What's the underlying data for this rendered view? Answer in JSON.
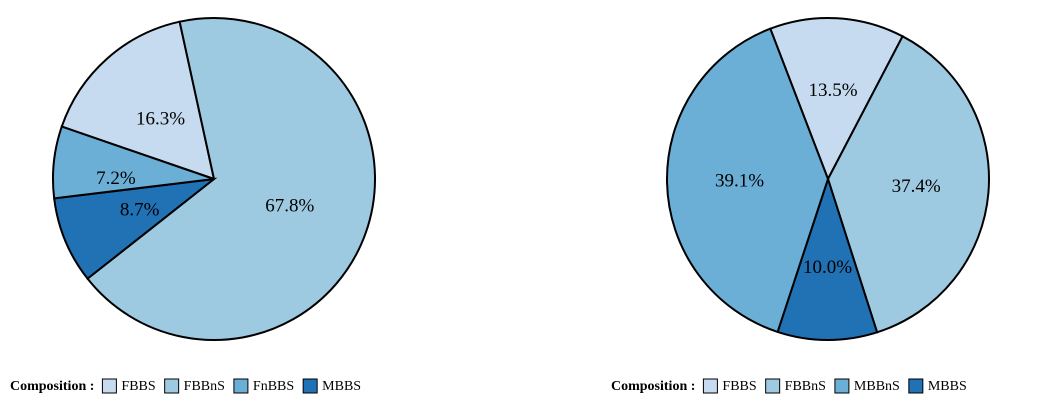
{
  "chart_data": [
    {
      "type": "pie",
      "title": "",
      "legend_title": "Composition :",
      "legend_position": "bottom",
      "categories": [
        "FBBS",
        "FBBnS",
        "FnBBS",
        "MBBS"
      ],
      "colors": [
        "#c6dbef",
        "#9ecae1",
        "#6baed6",
        "#2171b5"
      ],
      "slices": [
        {
          "name": "FBBS",
          "value": 16.3,
          "label": "16.3%",
          "color": "#c6dbef"
        },
        {
          "name": "FBBnS",
          "value": 67.8,
          "label": "67.8%",
          "color": "#9ecae1"
        },
        {
          "name": "MBBS",
          "value": 8.7,
          "label": "8.7%",
          "color": "#2171b5"
        },
        {
          "name": "FnBBS",
          "value": 7.2,
          "label": "7.2%",
          "color": "#6baed6"
        }
      ]
    },
    {
      "type": "pie",
      "title": "",
      "legend_title": "Composition :",
      "legend_position": "bottom",
      "categories": [
        "FBBS",
        "FBBnS",
        "MBBnS",
        "MBBS"
      ],
      "colors": [
        "#c6dbef",
        "#9ecae1",
        "#6baed6",
        "#2171b5"
      ],
      "slices": [
        {
          "name": "FBBS",
          "value": 13.5,
          "label": "13.5%",
          "color": "#c6dbef"
        },
        {
          "name": "FBBnS",
          "value": 37.4,
          "label": "37.4%",
          "color": "#9ecae1"
        },
        {
          "name": "MBBS",
          "value": 10.0,
          "label": "10.0%",
          "color": "#2171b5"
        },
        {
          "name": "MBBnS",
          "value": 39.1,
          "label": "39.1%",
          "color": "#6baed6"
        }
      ]
    }
  ]
}
